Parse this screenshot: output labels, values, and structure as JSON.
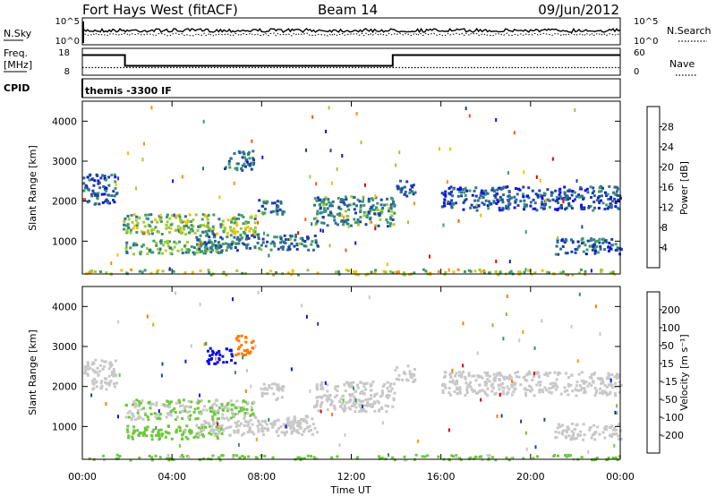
{
  "header": {
    "title": "Fort Hays West (fitACF)",
    "beam": "Beam 14",
    "date": "09/Jun/2012"
  },
  "noise_panel": {
    "left_label": "N.Sky",
    "left_ticks": [
      "10^5",
      "10^0"
    ],
    "right_label": "N.Search",
    "right_ticks": [
      "10^5",
      "10^0"
    ]
  },
  "freq_panel": {
    "left_label_1": "Freq.",
    "left_label_2": "[MHz]",
    "left_ticks": [
      "18",
      "8"
    ],
    "right_label": "Nave",
    "right_ticks": [
      "60",
      "0"
    ]
  },
  "cpid_panel": {
    "label": "CPID",
    "text": "themis -3300 IF"
  },
  "x_axis": {
    "label": "Time UT",
    "ticks": [
      "00:00",
      "04:00",
      "08:00",
      "12:00",
      "16:00",
      "20:00",
      "00:00"
    ]
  },
  "colors": {
    "power_scale": [
      "#1010e0",
      "#1f3fa8",
      "#2f6f8f",
      "#3f9a6f",
      "#9acd32",
      "#f5c000",
      "#ff8c00",
      "#ff5500",
      "#e00000"
    ],
    "velocity_scale": [
      "#1010e0",
      "#1f3fa8",
      "#3f8a6f",
      "#6ec83c",
      "#c8c8c8",
      "#c8c8c8",
      "#f5a000",
      "#ff7a00",
      "#e00000"
    ],
    "ground_scatter": "#c8c8c8"
  },
  "chart_data": [
    {
      "type": "line",
      "panel": "noise",
      "series": [
        {
          "name": "N.Sky",
          "style": "solid"
        },
        {
          "name": "N.Search",
          "style": "dotted"
        }
      ],
      "x_range_hours": [
        0,
        24
      ],
      "ylim_log10": [
        0,
        5
      ]
    },
    {
      "type": "line",
      "panel": "frequency",
      "series": [
        {
          "name": "Freq.",
          "style": "solid",
          "x_hours": [
            0,
            1.9,
            1.9,
            13.85,
            13.85,
            24
          ],
          "y": [
            15.5,
            15.5,
            11.5,
            11.5,
            15.5,
            15.5
          ]
        },
        {
          "name": "Nave",
          "style": "dotted",
          "x_hours": [
            0,
            1.9,
            1.9,
            13.85,
            13.85,
            24
          ],
          "y": [
            17,
            17,
            17,
            17,
            17,
            17
          ]
        }
      ],
      "left_ylim": [
        8,
        18
      ],
      "right_ylim": [
        0,
        60
      ]
    },
    {
      "type": "heatmap",
      "panel": "power",
      "ylabel": "Slant Range [km]",
      "xlabel": "Time UT",
      "ylim": [
        180,
        4500
      ],
      "yticks": [
        1000,
        2000,
        3000,
        4000
      ],
      "x_range_hours": [
        0,
        24
      ],
      "colorbar": {
        "label": "Power [dB]",
        "ticks": [
          "4",
          "8",
          "12",
          "16",
          "20",
          "24",
          "28"
        ],
        "range": [
          0,
          30
        ]
      },
      "regions": [
        {
          "t": [
            0.0,
            1.5
          ],
          "r": [
            1950,
            2700
          ],
          "value": 7
        },
        {
          "t": [
            1.8,
            7.8
          ],
          "r": [
            1200,
            1700
          ],
          "value": 14
        },
        {
          "t": [
            7.8,
            9.0
          ],
          "r": [
            1700,
            2100
          ],
          "value": 9
        },
        {
          "t": [
            1.9,
            6.2
          ],
          "r": [
            700,
            1050
          ],
          "value": 12
        },
        {
          "t": [
            5.0,
            10.5
          ],
          "r": [
            800,
            1200
          ],
          "value": 9
        },
        {
          "t": [
            6.3,
            7.6
          ],
          "r": [
            2800,
            3300
          ],
          "value": 8
        },
        {
          "t": [
            10.3,
            13.9
          ],
          "r": [
            1400,
            2150
          ],
          "value": 10
        },
        {
          "t": [
            13.9,
            14.8
          ],
          "r": [
            2150,
            2550
          ],
          "value": 7
        },
        {
          "t": [
            16.0,
            24.0
          ],
          "r": [
            1800,
            2400
          ],
          "value": 6
        },
        {
          "t": [
            21.0,
            24.0
          ],
          "r": [
            700,
            1100
          ],
          "value": 7
        },
        {
          "t": [
            0.0,
            24.0
          ],
          "r": [
            190,
            320
          ],
          "value": 16
        }
      ]
    },
    {
      "type": "heatmap",
      "panel": "velocity",
      "ylabel": "Slant Range [km]",
      "xlabel": "Time UT",
      "ylim": [
        180,
        4500
      ],
      "yticks": [
        1000,
        2000,
        3000,
        4000
      ],
      "x_range_hours": [
        0,
        24
      ],
      "colorbar": {
        "label": "Velocity [m s⁻¹]",
        "ticks": [
          "-200",
          "-100",
          "-50",
          "-15",
          "15",
          "50",
          "100",
          "200"
        ],
        "range": [
          -250,
          250
        ]
      },
      "regions": [
        {
          "t": [
            0.0,
            1.5
          ],
          "r": [
            1950,
            2700
          ],
          "value": 0
        },
        {
          "t": [
            1.8,
            7.8
          ],
          "r": [
            1200,
            1700
          ],
          "value": -30
        },
        {
          "t": [
            7.8,
            9.0
          ],
          "r": [
            1700,
            2100
          ],
          "value": 0
        },
        {
          "t": [
            1.9,
            6.2
          ],
          "r": [
            700,
            1050
          ],
          "value": -60
        },
        {
          "t": [
            5.0,
            10.5
          ],
          "r": [
            800,
            1200
          ],
          "value": 0
        },
        {
          "t": [
            9.0,
            10.2
          ],
          "r": [
            900,
            1300
          ],
          "value": 40
        },
        {
          "t": [
            5.5,
            6.8
          ],
          "r": [
            2600,
            3000
          ],
          "value": -230
        },
        {
          "t": [
            6.8,
            7.6
          ],
          "r": [
            2800,
            3300
          ],
          "value": 180
        },
        {
          "t": [
            10.3,
            13.9
          ],
          "r": [
            1400,
            2150
          ],
          "value": 0
        },
        {
          "t": [
            13.9,
            14.8
          ],
          "r": [
            2150,
            2550
          ],
          "value": 0
        },
        {
          "t": [
            16.0,
            24.0
          ],
          "r": [
            1800,
            2400
          ],
          "value": 0
        },
        {
          "t": [
            21.0,
            24.0
          ],
          "r": [
            700,
            1100
          ],
          "value": 0
        },
        {
          "t": [
            0.0,
            24.0
          ],
          "r": [
            190,
            320
          ],
          "value": -40
        }
      ]
    }
  ]
}
